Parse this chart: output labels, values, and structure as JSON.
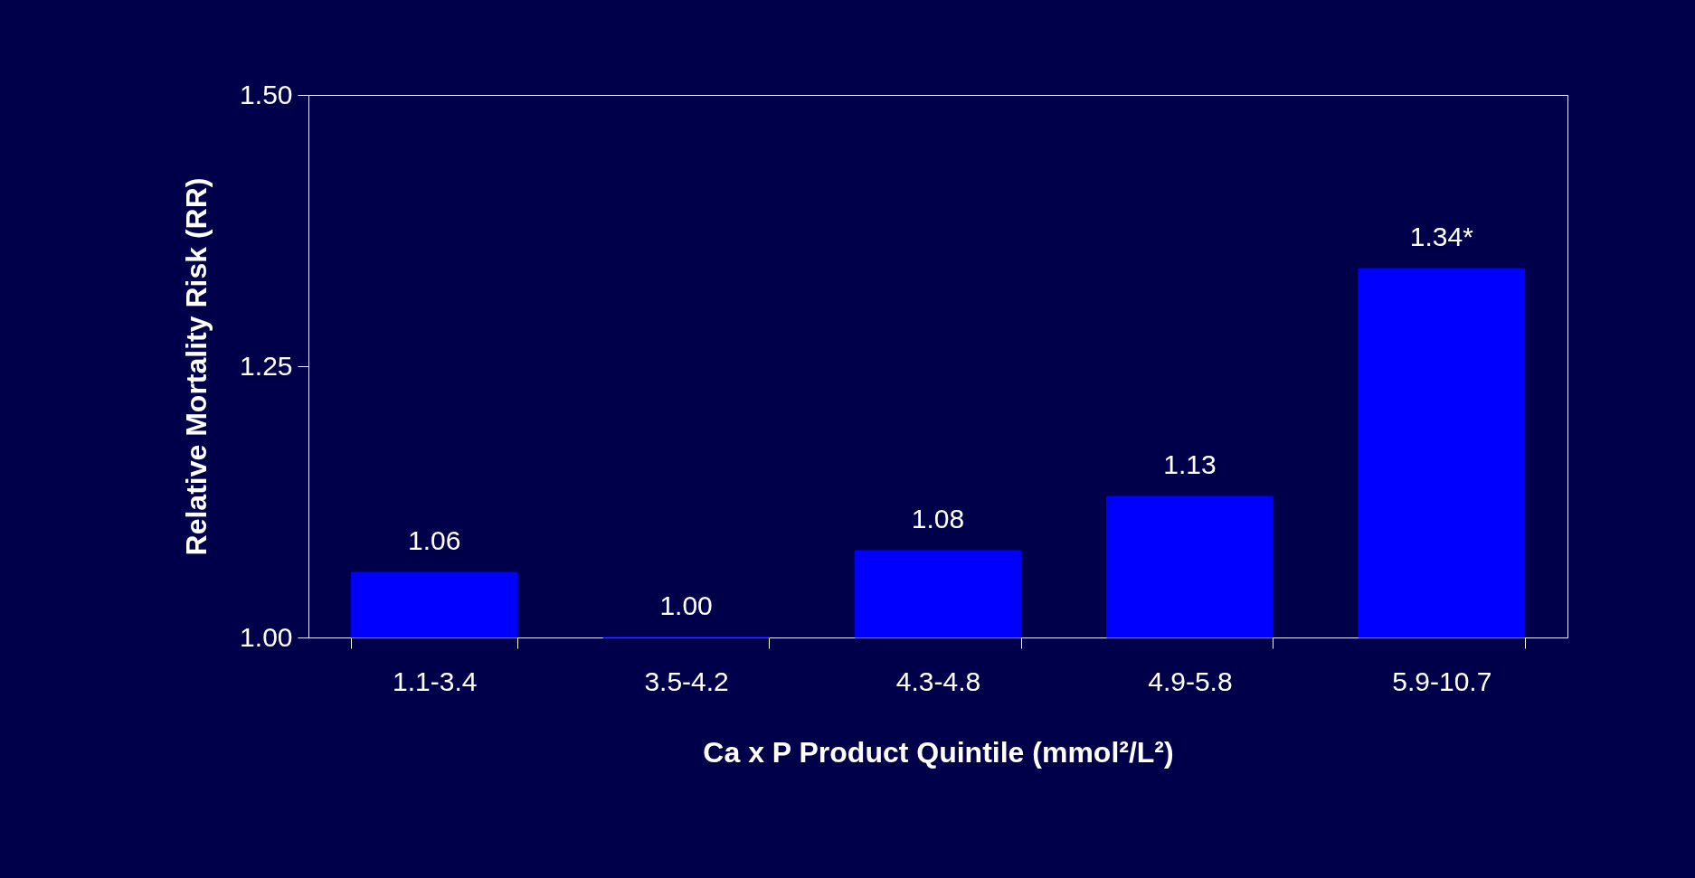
{
  "chart_data": {
    "type": "bar",
    "categories": [
      "1.1-3.4",
      "3.5-4.2",
      "4.3-4.8",
      "4.9-5.8",
      "5.9-10.7"
    ],
    "values": [
      1.06,
      1.0,
      1.08,
      1.13,
      1.34
    ],
    "value_labels": [
      "1.06",
      "1.00",
      "1.08",
      "1.13",
      "1.34*"
    ],
    "color": "#0000ff",
    "xlabel": "Ca x P Product Quintile (mmol²/L²)",
    "ylabel": "Relative Mortality Risk (RR)",
    "ylim": [
      1.0,
      1.5
    ],
    "yticks": [
      {
        "value": 1.0,
        "label": "1.00"
      },
      {
        "value": 1.25,
        "label": "1.25"
      },
      {
        "value": 1.5,
        "label": "1.50"
      }
    ],
    "grid": false
  }
}
